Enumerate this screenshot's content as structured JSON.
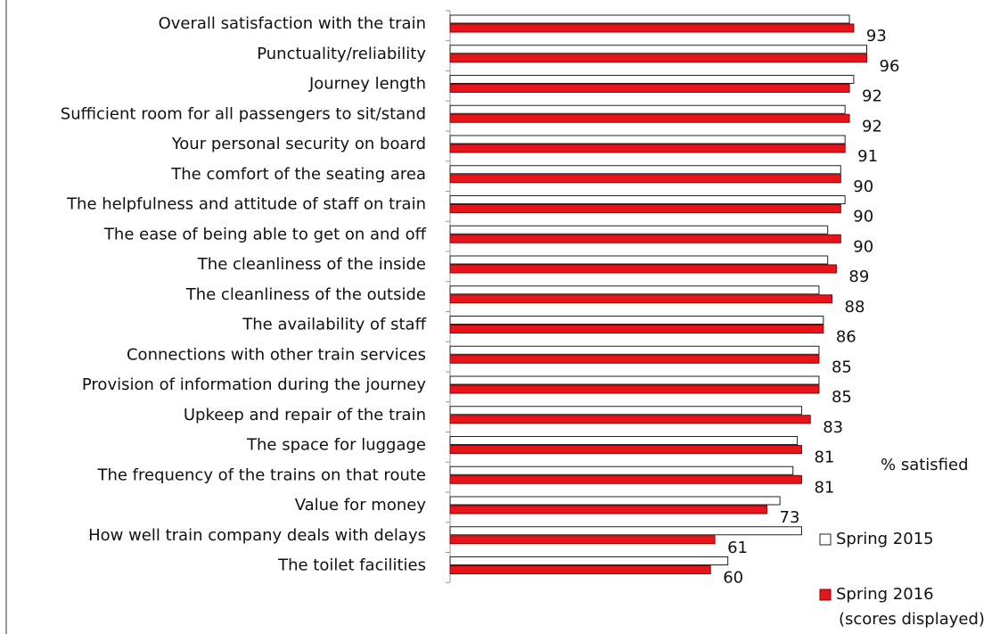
{
  "chart_data": {
    "type": "bar",
    "orientation": "horizontal",
    "categories": [
      "Overall satisfaction with the train",
      "Punctuality/reliability",
      "Journey length",
      "Sufficient room for all passengers to sit/stand",
      "Your personal security on board",
      "The comfort of the seating area",
      "The helpfulness and attitude of staff on train",
      "The ease of being able to get on and off",
      "The cleanliness of the inside",
      "The cleanliness of the outside",
      "The availability of staff",
      "Connections with other train services",
      "Provision of information during the journey",
      "Upkeep and repair of the train",
      "The space for luggage",
      "The frequency of the trains on that route",
      "Value for money",
      "How well train company deals with delays",
      "The toilet facilities"
    ],
    "series": [
      {
        "name": "Spring 2015",
        "color": "#ffffff",
        "values": [
          92,
          96,
          93,
          91,
          91,
          90,
          91,
          87,
          87,
          85,
          86,
          85,
          85,
          81,
          80,
          79,
          76,
          81,
          64
        ]
      },
      {
        "name": "Spring 2016",
        "color": "#e8141c",
        "values": [
          93,
          96,
          92,
          92,
          91,
          90,
          90,
          90,
          89,
          88,
          86,
          85,
          85,
          83,
          81,
          81,
          73,
          61,
          60
        ],
        "show_labels": true
      }
    ],
    "unit_label": "% satisfied",
    "legend_note": "(scores displayed)"
  }
}
